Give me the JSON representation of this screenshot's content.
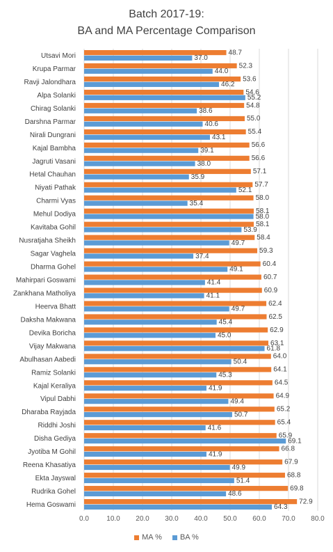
{
  "chart_data": {
    "type": "bar",
    "orientation": "horizontal",
    "title": "Batch 2017-19:",
    "subtitle": "BA and MA Percentage Comparison",
    "categories": [
      "Utsavi Mori",
      "Krupa Parmar",
      "Ravji Jalondhara",
      "Alpa Solanki",
      "Chirag Solanki",
      "Darshna Parmar",
      "Nirali Dungrani",
      "Kajal Bambha",
      "Jagruti Vasani",
      "Hetal Chauhan",
      "Niyati Pathak",
      "Charmi Vyas",
      "Mehul Dodiya",
      "Kavitaba Gohil",
      "Nusratjaha Sheikh",
      "Sagar Vaghela",
      "Dharma Gohel",
      "Mahirpari Goswami",
      "Zankhana Matholiya",
      "Heerva Bhatt",
      "Daksha Makwana",
      "Devika Boricha",
      "Vijay Makwana",
      "Abulhasan Aabedi",
      "Ramiz Solanki",
      "Kajal Keraliya",
      "Vipul Dabhi",
      "Dharaba Rayjada",
      "Riddhi Joshi",
      "Disha Gediya",
      "Jyotiba M Gohil",
      "Reena Khasatiya",
      "Ekta Jayswal",
      "Rudrika Gohel",
      "Hema Goswami"
    ],
    "series": [
      {
        "name": "MA %",
        "color": "#ED7D31",
        "values": [
          48.7,
          52.3,
          53.6,
          54.6,
          54.8,
          55.0,
          55.4,
          56.6,
          56.6,
          57.1,
          57.7,
          58.0,
          58.1,
          58.1,
          58.4,
          59.3,
          60.4,
          60.7,
          60.9,
          62.4,
          62.5,
          62.9,
          63.1,
          64.0,
          64.1,
          64.5,
          64.9,
          65.2,
          65.4,
          65.9,
          66.8,
          67.9,
          68.8,
          69.8,
          72.9
        ]
      },
      {
        "name": "BA %",
        "color": "#5B9BD5",
        "values": [
          37.0,
          44.0,
          46.2,
          55.2,
          38.6,
          40.6,
          43.1,
          39.1,
          38.0,
          35.9,
          52.1,
          35.4,
          58.0,
          53.9,
          49.7,
          37.4,
          49.1,
          41.4,
          41.1,
          49.7,
          45.4,
          45.0,
          61.8,
          50.4,
          45.3,
          41.9,
          49.4,
          50.7,
          41.6,
          69.1,
          41.9,
          49.9,
          51.4,
          48.6,
          64.3
        ]
      }
    ],
    "xlim": [
      0,
      80
    ],
    "xticks": [
      "0.0",
      "10.0",
      "20.0",
      "30.0",
      "40.0",
      "50.0",
      "60.0",
      "70.0",
      "80.0"
    ],
    "grid": true,
    "legend": "bottom"
  }
}
